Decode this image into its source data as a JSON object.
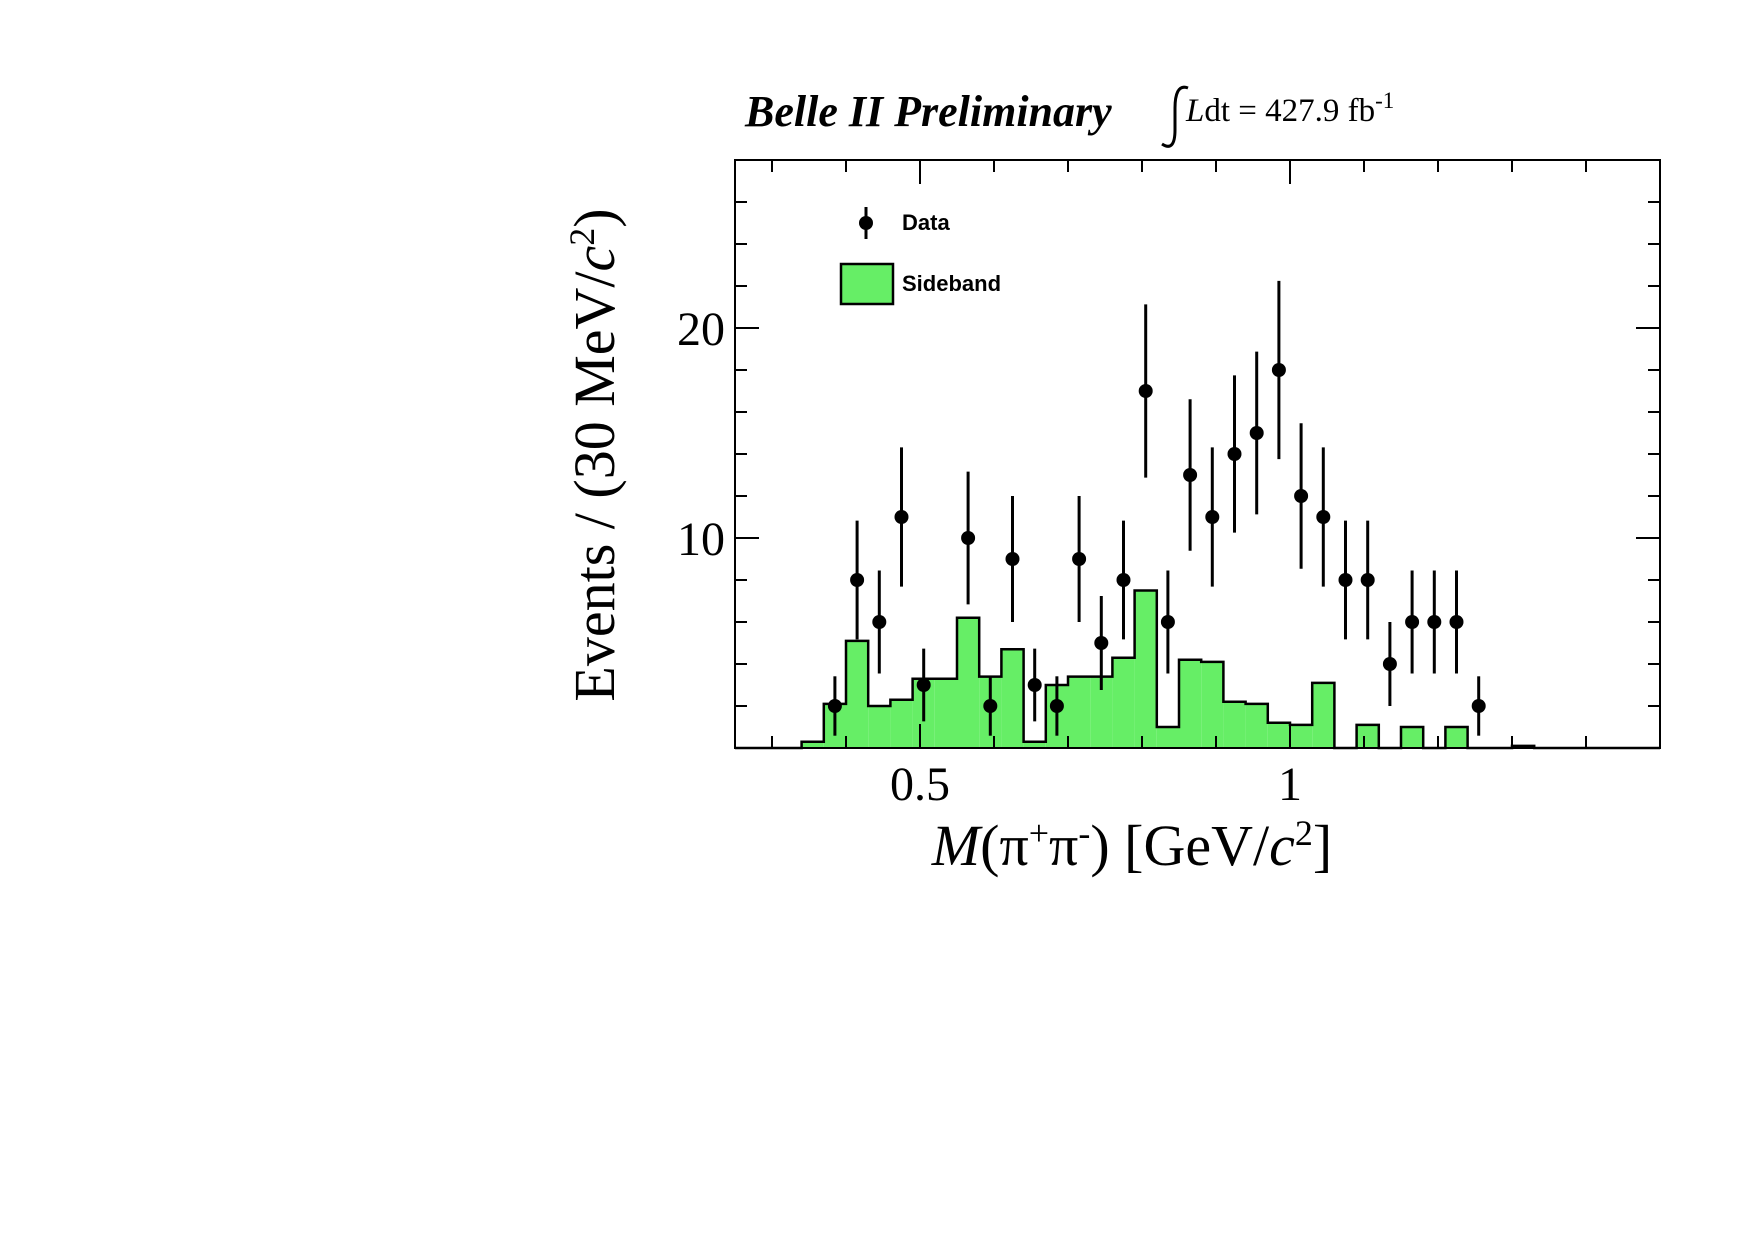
{
  "chart_data": {
    "type": "histogram",
    "experiment": "Belle II",
    "status": "Preliminary",
    "luminosity_prefix": "L",
    "luminosity_mid": "dt = 427.9 fb",
    "luminosity_exp": "-1",
    "xlabel": {
      "main": "M",
      "paren_open": "(π",
      "sup_plus": "+",
      "pi2": "π",
      "sup_minus": "-",
      "unit_open": ") [GeV/",
      "c": "c",
      "sup2": "2",
      "close": "]"
    },
    "ylabel": {
      "text": "Events / (30 MeV/",
      "c": "c",
      "sup2": "2",
      "close": ")"
    },
    "xlim": [
      0.25,
      1.5
    ],
    "ylim": [
      0,
      28
    ],
    "xticks": [
      {
        "value": 0.5,
        "label": "0.5"
      },
      {
        "value": 1.0,
        "label": "1"
      }
    ],
    "yticks": [
      {
        "value": 10,
        "label": "10"
      },
      {
        "value": 20,
        "label": "20"
      }
    ],
    "legend": {
      "placement": "top-left",
      "entries": [
        {
          "label": "Data",
          "style": "marker"
        },
        {
          "label": "Sideband",
          "style": "fill"
        }
      ]
    },
    "colors": {
      "sideband_fill": "#66ee66",
      "sideband_line": "#000000",
      "data": "#000000"
    },
    "sideband": {
      "edges": [
        0.25,
        0.28,
        0.31,
        0.34,
        0.37,
        0.4,
        0.43,
        0.46,
        0.49,
        0.52,
        0.55,
        0.58,
        0.61,
        0.64,
        0.67,
        0.7,
        0.73,
        0.76,
        0.79,
        0.82,
        0.85,
        0.88,
        0.91,
        0.94,
        0.97,
        1.0,
        1.03,
        1.06,
        1.09,
        1.12,
        1.15,
        1.18,
        1.21,
        1.24,
        1.27,
        1.3,
        1.33,
        1.36,
        1.39,
        1.42,
        1.45,
        1.48,
        1.5
      ],
      "values": [
        0,
        0,
        0,
        0.3,
        2.1,
        5.1,
        2.0,
        2.3,
        3.3,
        3.3,
        6.2,
        3.4,
        4.7,
        0.3,
        3.0,
        3.4,
        3.4,
        4.3,
        7.5,
        1.0,
        4.2,
        4.1,
        2.2,
        2.1,
        1.2,
        1.1,
        3.1,
        0,
        1.1,
        0,
        1.0,
        0,
        1.0,
        0,
        0,
        0.1,
        0,
        0,
        0,
        0,
        0,
        0
      ]
    },
    "data_points": [
      {
        "x": 0.385,
        "y": 2
      },
      {
        "x": 0.415,
        "y": 8
      },
      {
        "x": 0.445,
        "y": 6
      },
      {
        "x": 0.475,
        "y": 11
      },
      {
        "x": 0.505,
        "y": 3
      },
      {
        "x": 0.565,
        "y": 10
      },
      {
        "x": 0.595,
        "y": 2
      },
      {
        "x": 0.625,
        "y": 9
      },
      {
        "x": 0.655,
        "y": 3
      },
      {
        "x": 0.685,
        "y": 2
      },
      {
        "x": 0.715,
        "y": 9
      },
      {
        "x": 0.745,
        "y": 5
      },
      {
        "x": 0.775,
        "y": 8
      },
      {
        "x": 0.805,
        "y": 17
      },
      {
        "x": 0.835,
        "y": 6
      },
      {
        "x": 0.865,
        "y": 13
      },
      {
        "x": 0.895,
        "y": 11
      },
      {
        "x": 0.925,
        "y": 14
      },
      {
        "x": 0.955,
        "y": 15
      },
      {
        "x": 0.985,
        "y": 18
      },
      {
        "x": 1.015,
        "y": 12
      },
      {
        "x": 1.045,
        "y": 11
      },
      {
        "x": 1.075,
        "y": 8
      },
      {
        "x": 1.105,
        "y": 8
      },
      {
        "x": 1.135,
        "y": 4
      },
      {
        "x": 1.165,
        "y": 6
      },
      {
        "x": 1.195,
        "y": 6
      },
      {
        "x": 1.225,
        "y": 6
      },
      {
        "x": 1.255,
        "y": 2
      }
    ]
  }
}
